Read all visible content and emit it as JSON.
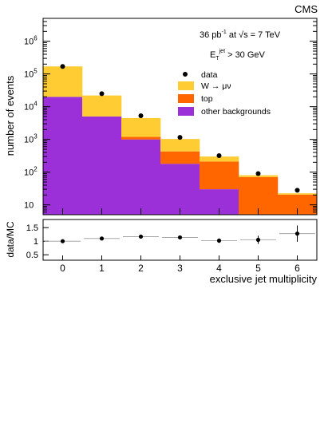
{
  "chart_data": [
    {
      "type": "bar",
      "stacked": true,
      "log_scale_y": true,
      "experiment_label": "CMS",
      "lumi_text": {
        "prefix": "36 pb",
        "exp": "-1",
        "middle": " at √s = 7 TeV"
      },
      "cut_text": {
        "prefix": "E",
        "sub": "T",
        "sup": "jet",
        "suffix": " > 30 GeV"
      },
      "ylabel": "number of events",
      "ylim": [
        5,
        5000000
      ],
      "y_ticks": [
        {
          "value": 10,
          "base": "10",
          "exp": ""
        },
        {
          "value": 100,
          "base": "10",
          "exp": "2"
        },
        {
          "value": 1000,
          "base": "10",
          "exp": "3"
        },
        {
          "value": 10000,
          "base": "10",
          "exp": "4"
        },
        {
          "value": 100000,
          "base": "10",
          "exp": "5"
        },
        {
          "value": 1000000,
          "base": "10",
          "exp": "6"
        }
      ],
      "categories": [
        0,
        1,
        2,
        3,
        4,
        5,
        6
      ],
      "series": [
        {
          "name": "other backgrounds",
          "color": "#9b30d8",
          "values": [
            20000,
            5000,
            1000,
            180,
            30,
            0.5,
            0.5
          ]
        },
        {
          "name": "top",
          "color": "#ff6600",
          "values": [
            0,
            30,
            200,
            250,
            180,
            70,
            20
          ]
        },
        {
          "name": "W → μν",
          "color": "#ffcc33",
          "values": [
            150000,
            17000,
            3300,
            600,
            90,
            10,
            2
          ]
        }
      ],
      "data_points": [
        {
          "x": 0,
          "y": 170000
        },
        {
          "x": 1,
          "y": 25000
        },
        {
          "x": 2,
          "y": 5300
        },
        {
          "x": 3,
          "y": 1150
        },
        {
          "x": 4,
          "y": 320
        },
        {
          "x": 5,
          "y": 90
        },
        {
          "x": 6,
          "y": 28
        }
      ],
      "legend": {
        "position": "top-right",
        "entries": [
          {
            "label": "data",
            "marker": "dot"
          },
          {
            "label": "W → μν",
            "color": "#ffcc33"
          },
          {
            "label": "top",
            "color": "#ff6600"
          },
          {
            "label": "other backgrounds",
            "color": "#9b30d8"
          }
        ]
      }
    },
    {
      "type": "scatter",
      "ylabel": "data/MC",
      "xlabel": "exclusive jet multiplicity",
      "ylim": [
        0.3,
        1.8
      ],
      "y_ticks": [
        "0.5",
        "1",
        "1.5"
      ],
      "x_ticks": [
        "0",
        "1",
        "2",
        "3",
        "4",
        "5",
        "6"
      ],
      "points": [
        {
          "x": 0,
          "y": 1.0,
          "err": 0.02
        },
        {
          "x": 1,
          "y": 1.1,
          "err": 0.03
        },
        {
          "x": 2,
          "y": 1.17,
          "err": 0.04
        },
        {
          "x": 3,
          "y": 1.14,
          "err": 0.05
        },
        {
          "x": 4,
          "y": 1.02,
          "err": 0.08
        },
        {
          "x": 5,
          "y": 1.05,
          "err": 0.15
        },
        {
          "x": 6,
          "y": 1.28,
          "err": 0.3
        }
      ]
    }
  ]
}
